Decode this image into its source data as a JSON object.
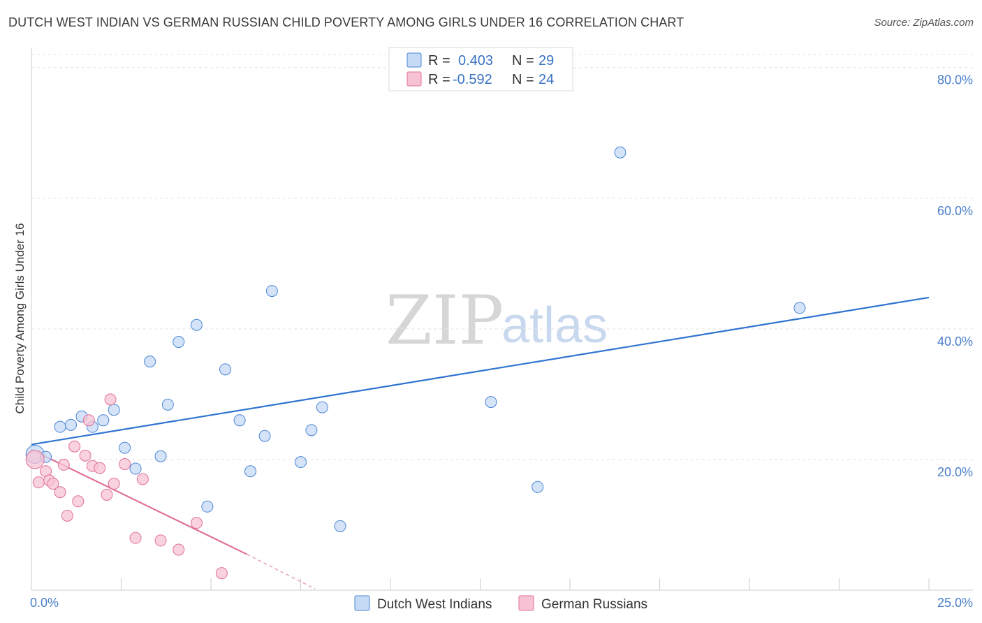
{
  "title": "DUTCH WEST INDIAN VS GERMAN RUSSIAN CHILD POVERTY AMONG GIRLS UNDER 16 CORRELATION CHART",
  "source": "Source: ZipAtlas.com",
  "watermark": {
    "zip": "ZIP",
    "atlas": "atlas"
  },
  "colors": {
    "blue": "#4a86d6",
    "blue_fill": "#c5daf5",
    "pink": "#e06f98",
    "pink_fill": "#f7c3d4",
    "grid": "#e3e3e3"
  },
  "legend": {
    "rows": [
      {
        "r_label": "R =",
        "r_value": "0.403",
        "n_label": "N =",
        "n_value": "29"
      },
      {
        "r_label": "R =",
        "r_value": "-0.592",
        "n_label": "N =",
        "n_value": "24"
      }
    ]
  },
  "chart_data": {
    "type": "scatter",
    "title": "DUTCH WEST INDIAN VS GERMAN RUSSIAN CHILD POVERTY AMONG GIRLS UNDER 16 CORRELATION CHART",
    "xlabel": "",
    "ylabel": "Child Poverty Among Girls Under 16",
    "xlim": [
      0,
      25
    ],
    "ylim": [
      0,
      82
    ],
    "x_tick_labels": [
      "0.0%",
      "25.0%"
    ],
    "y_ticks": [
      20,
      40,
      60,
      80
    ],
    "y_tick_labels": [
      "20.0%",
      "40.0%",
      "60.0%",
      "80.0%"
    ],
    "grid": true,
    "legend_position": "top-center",
    "series": [
      {
        "name": "Dutch West Indians",
        "r": 0.403,
        "n": 29,
        "points": [
          {
            "x": 0.1,
            "y": 20.8
          },
          {
            "x": 0.4,
            "y": 20.4
          },
          {
            "x": 0.8,
            "y": 25.0
          },
          {
            "x": 1.1,
            "y": 25.3
          },
          {
            "x": 1.4,
            "y": 26.6
          },
          {
            "x": 1.7,
            "y": 25.0
          },
          {
            "x": 2.0,
            "y": 26.0
          },
          {
            "x": 2.3,
            "y": 27.6
          },
          {
            "x": 2.6,
            "y": 21.8
          },
          {
            "x": 2.9,
            "y": 18.6
          },
          {
            "x": 3.3,
            "y": 35.0
          },
          {
            "x": 3.6,
            "y": 20.5
          },
          {
            "x": 3.8,
            "y": 28.4
          },
          {
            "x": 4.1,
            "y": 38.0
          },
          {
            "x": 4.6,
            "y": 40.6
          },
          {
            "x": 4.9,
            "y": 12.8
          },
          {
            "x": 5.4,
            "y": 33.8
          },
          {
            "x": 5.8,
            "y": 26.0
          },
          {
            "x": 6.1,
            "y": 18.2
          },
          {
            "x": 6.5,
            "y": 23.6
          },
          {
            "x": 6.7,
            "y": 45.8
          },
          {
            "x": 7.5,
            "y": 19.6
          },
          {
            "x": 7.8,
            "y": 24.5
          },
          {
            "x": 8.1,
            "y": 28.0
          },
          {
            "x": 8.6,
            "y": 9.8
          },
          {
            "x": 12.8,
            "y": 28.8
          },
          {
            "x": 14.1,
            "y": 15.8
          },
          {
            "x": 16.4,
            "y": 67.0
          },
          {
            "x": 21.4,
            "y": 43.2
          }
        ],
        "trend": {
          "x0": 0,
          "y0": 22.3,
          "x1": 25,
          "y1": 44.8
        }
      },
      {
        "name": "German Russians",
        "r": -0.592,
        "n": 24,
        "points": [
          {
            "x": 0.1,
            "y": 20.0
          },
          {
            "x": 0.2,
            "y": 16.5
          },
          {
            "x": 0.4,
            "y": 18.2
          },
          {
            "x": 0.5,
            "y": 16.8
          },
          {
            "x": 0.6,
            "y": 16.3
          },
          {
            "x": 0.8,
            "y": 15.0
          },
          {
            "x": 0.9,
            "y": 19.2
          },
          {
            "x": 1.0,
            "y": 11.4
          },
          {
            "x": 1.2,
            "y": 22.0
          },
          {
            "x": 1.3,
            "y": 13.6
          },
          {
            "x": 1.5,
            "y": 20.6
          },
          {
            "x": 1.6,
            "y": 26.0
          },
          {
            "x": 1.7,
            "y": 19.0
          },
          {
            "x": 1.9,
            "y": 18.7
          },
          {
            "x": 2.1,
            "y": 14.6
          },
          {
            "x": 2.2,
            "y": 29.2
          },
          {
            "x": 2.3,
            "y": 16.3
          },
          {
            "x": 2.6,
            "y": 19.3
          },
          {
            "x": 2.9,
            "y": 8.0
          },
          {
            "x": 3.1,
            "y": 17.0
          },
          {
            "x": 3.6,
            "y": 7.6
          },
          {
            "x": 4.1,
            "y": 6.2
          },
          {
            "x": 4.6,
            "y": 10.3
          },
          {
            "x": 5.3,
            "y": 2.6
          }
        ],
        "trend": {
          "x0": 0,
          "y0": 21.5,
          "x1": 6.0,
          "y1": 5.5
        },
        "trend_extension": {
          "x0": 6.0,
          "y0": 5.5,
          "x1": 7.9,
          "y1": 0.2
        }
      }
    ]
  }
}
